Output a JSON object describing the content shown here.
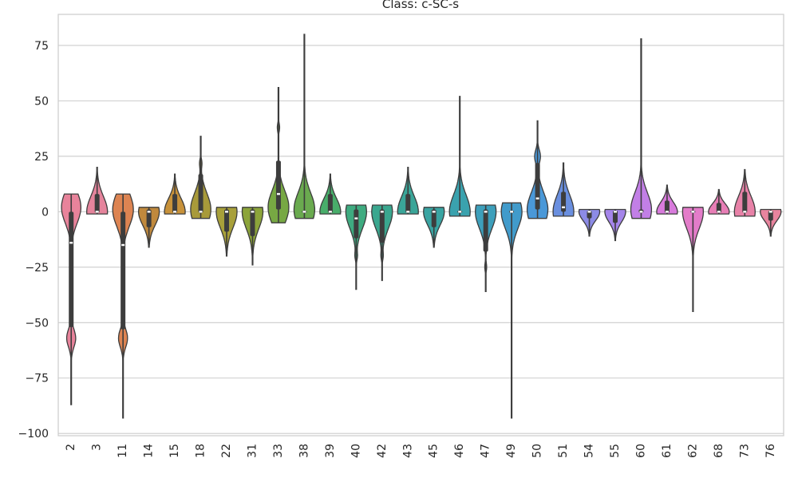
{
  "chart_data": {
    "type": "violin",
    "title": "Class: c-SC-s",
    "xlabel": "",
    "ylabel": "",
    "categories": [
      "2",
      "3",
      "11",
      "14",
      "15",
      "18",
      "22",
      "31",
      "33",
      "38",
      "39",
      "40",
      "42",
      "43",
      "45",
      "46",
      "47",
      "49",
      "50",
      "51",
      "54",
      "55",
      "60",
      "61",
      "62",
      "68",
      "73",
      "76"
    ],
    "ylim": [
      -101,
      89
    ],
    "yticks": [
      75,
      50,
      25,
      0,
      -25,
      -50,
      -75,
      -100
    ],
    "ytick_labels": [
      "75",
      "50",
      "25",
      "0",
      "−25",
      "−50",
      "−75",
      "−100"
    ],
    "grid": true,
    "legend": "none",
    "palette": [
      "#e8839b",
      "#e5849c",
      "#dd8452",
      "#c0893d",
      "#c8923a",
      "#a89a3a",
      "#a8a03a",
      "#8ca43a",
      "#77a843",
      "#6aaa4f",
      "#48ad6a",
      "#3eab80",
      "#3aa78f",
      "#3aa598",
      "#39a4a2",
      "#3aa2ae",
      "#3d9fbb",
      "#419bcb",
      "#4a98d8",
      "#6a8fdf",
      "#8c8be6",
      "#a585ea",
      "#c27fe6",
      "#d87bdc",
      "#e37cc9",
      "#e77eb6",
      "#e882a8",
      "#e8849e"
    ],
    "violins": [
      {
        "category": "2",
        "min": -87,
        "max": 8,
        "q1": -52,
        "median": -14,
        "q3": 0,
        "modes": [
          {
            "y": 2,
            "w": 0.75
          },
          {
            "y": -57,
            "w": 0.35
          }
        ]
      },
      {
        "category": "3",
        "min": -1,
        "max": 20,
        "q1": -0.5,
        "median": 0,
        "q3": 8,
        "modes": [
          {
            "y": 0,
            "w": 0.8
          }
        ]
      },
      {
        "category": "11",
        "min": -93,
        "max": 8,
        "q1": -53,
        "median": -15,
        "q3": 0,
        "modes": [
          {
            "y": 1,
            "w": 0.8
          },
          {
            "y": -57,
            "w": 0.35
          }
        ]
      },
      {
        "category": "14",
        "min": -16,
        "max": 2,
        "q1": -7,
        "median": 0,
        "q3": 1,
        "modes": [
          {
            "y": 0,
            "w": 0.8
          }
        ]
      },
      {
        "category": "15",
        "min": -1,
        "max": 17,
        "q1": -0.5,
        "median": 0,
        "q3": 8,
        "modes": [
          {
            "y": 0,
            "w": 0.8
          }
        ]
      },
      {
        "category": "18",
        "min": -3,
        "max": 34,
        "q1": -0.5,
        "median": 0,
        "q3": 17,
        "modes": [
          {
            "y": 1,
            "w": 0.78
          },
          {
            "y": 22,
            "w": 0.08
          }
        ]
      },
      {
        "category": "22",
        "min": -20,
        "max": 2,
        "q1": -9,
        "median": 0,
        "q3": 1,
        "modes": [
          {
            "y": 0,
            "w": 0.8
          }
        ]
      },
      {
        "category": "31",
        "min": -24,
        "max": 2,
        "q1": -11,
        "median": 0,
        "q3": 1,
        "modes": [
          {
            "y": 0,
            "w": 0.8
          }
        ]
      },
      {
        "category": "33",
        "min": -5,
        "max": 56,
        "q1": 1,
        "median": 8,
        "q3": 23,
        "modes": [
          {
            "y": 2,
            "w": 0.8
          },
          {
            "y": 38,
            "w": 0.09
          }
        ]
      },
      {
        "category": "38",
        "min": -3,
        "max": 80,
        "q1": -0.5,
        "median": 0,
        "q3": 0.5,
        "modes": [
          {
            "y": 1,
            "w": 0.8
          }
        ]
      },
      {
        "category": "39",
        "min": -1,
        "max": 17,
        "q1": -0.5,
        "median": 0,
        "q3": 8,
        "modes": [
          {
            "y": 0,
            "w": 0.8
          }
        ]
      },
      {
        "category": "40",
        "min": -35,
        "max": 3,
        "q1": -12,
        "median": -3,
        "q3": 1,
        "modes": [
          {
            "y": 0,
            "w": 0.8
          },
          {
            "y": -20,
            "w": 0.08
          }
        ]
      },
      {
        "category": "42",
        "min": -31,
        "max": 3,
        "q1": -14,
        "median": 0,
        "q3": 1,
        "modes": [
          {
            "y": 0,
            "w": 0.8
          },
          {
            "y": -20,
            "w": 0.07
          }
        ]
      },
      {
        "category": "43",
        "min": -1,
        "max": 20,
        "q1": -0.5,
        "median": 0,
        "q3": 8,
        "modes": [
          {
            "y": 0,
            "w": 0.8
          }
        ]
      },
      {
        "category": "45",
        "min": -16,
        "max": 2,
        "q1": -7,
        "median": 0,
        "q3": 1,
        "modes": [
          {
            "y": 0,
            "w": 0.8
          }
        ]
      },
      {
        "category": "46",
        "min": -2,
        "max": 52,
        "q1": -0.5,
        "median": 0,
        "q3": 0.5,
        "modes": [
          {
            "y": 0,
            "w": 0.8
          }
        ]
      },
      {
        "category": "47",
        "min": -36,
        "max": 3,
        "q1": -18,
        "median": 0,
        "q3": 1,
        "modes": [
          {
            "y": 0,
            "w": 0.8
          },
          {
            "y": -25,
            "w": 0.07
          }
        ]
      },
      {
        "category": "49",
        "min": -93,
        "max": 4,
        "q1": -0.5,
        "median": 0,
        "q3": 0.5,
        "modes": [
          {
            "y": 0,
            "w": 0.8
          }
        ]
      },
      {
        "category": "50",
        "min": -3,
        "max": 41,
        "q1": 1,
        "median": 6,
        "q3": 22,
        "modes": [
          {
            "y": 1,
            "w": 0.8
          },
          {
            "y": 25,
            "w": 0.22
          }
        ]
      },
      {
        "category": "51",
        "min": -2,
        "max": 22,
        "q1": 0,
        "median": 2,
        "q3": 9,
        "modes": [
          {
            "y": 0,
            "w": 0.8
          }
        ]
      },
      {
        "category": "54",
        "min": -11,
        "max": 1,
        "q1": -3,
        "median": 0,
        "q3": 0.5,
        "modes": [
          {
            "y": 0,
            "w": 0.8
          }
        ]
      },
      {
        "category": "55",
        "min": -13,
        "max": 1,
        "q1": -5,
        "median": 0,
        "q3": 0.5,
        "modes": [
          {
            "y": 0,
            "w": 0.8
          }
        ]
      },
      {
        "category": "60",
        "min": -3,
        "max": 78,
        "q1": -0.5,
        "median": 0,
        "q3": 1,
        "modes": [
          {
            "y": 1,
            "w": 0.8
          }
        ]
      },
      {
        "category": "61",
        "min": -1,
        "max": 12,
        "q1": -0.5,
        "median": 0,
        "q3": 5,
        "modes": [
          {
            "y": 0,
            "w": 0.8
          }
        ]
      },
      {
        "category": "62",
        "min": -45,
        "max": 2,
        "q1": -0.5,
        "median": 0,
        "q3": 0.5,
        "modes": [
          {
            "y": 0,
            "w": 0.8
          }
        ]
      },
      {
        "category": "68",
        "min": -1,
        "max": 10,
        "q1": -0.5,
        "median": 0,
        "q3": 4,
        "modes": [
          {
            "y": 0,
            "w": 0.8
          }
        ]
      },
      {
        "category": "73",
        "min": -2,
        "max": 19,
        "q1": -0.5,
        "median": 0,
        "q3": 9,
        "modes": [
          {
            "y": 0,
            "w": 0.8
          }
        ]
      },
      {
        "category": "76",
        "min": -11,
        "max": 1,
        "q1": -4,
        "median": 0,
        "q3": 0.5,
        "modes": [
          {
            "y": 0,
            "w": 0.8
          }
        ]
      }
    ]
  }
}
